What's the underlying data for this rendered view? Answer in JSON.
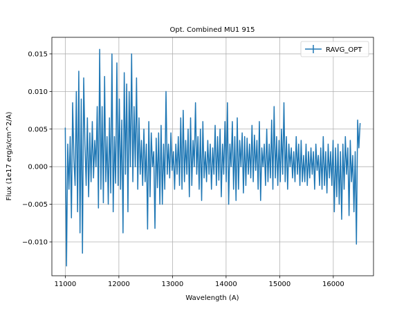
{
  "chart_data": {
    "type": "line",
    "title": "Opt. Combined MU1 915",
    "xlabel": "Wavelength (A)",
    "ylabel": "Flux (1e17 erg/s/cm^2/A)",
    "xlim": [
      10750,
      16750
    ],
    "ylim": [
      -0.0145,
      0.0172
    ],
    "x_ticks": [
      11000,
      12000,
      13000,
      14000,
      15000,
      16000
    ],
    "y_ticks": [
      -0.01,
      -0.005,
      0.0,
      0.005,
      0.01,
      0.015
    ],
    "x_tick_labels": [
      "11000",
      "12000",
      "13000",
      "14000",
      "15000",
      "16000"
    ],
    "y_tick_labels": [
      "−0.010",
      "−0.005",
      "0.000",
      "0.005",
      "0.010",
      "0.015"
    ],
    "grid": true,
    "legend_position": "top-right",
    "series": [
      {
        "name": "RAVG_OPT",
        "color": "#1f77b4",
        "x_start": 11000,
        "x_end": 16500,
        "y": [
          0.0052,
          -0.0132,
          0.003,
          -0.003,
          0.004,
          -0.0068,
          0.0085,
          0.001,
          -0.0025,
          0.01,
          -0.006,
          0.0127,
          -0.0088,
          0.009,
          -0.0115,
          0.0118,
          0.003,
          -0.0025,
          0.0065,
          -0.004,
          0.0045,
          -0.002,
          0.006,
          -0.0015,
          0.0035,
          0.0,
          0.008,
          -0.0055,
          0.0156,
          -0.003,
          0.008,
          -0.0048,
          0.012,
          -0.002,
          0.004,
          -0.005,
          0.0065,
          -0.0035,
          0.015,
          -0.006,
          0.004,
          -0.0022,
          0.0138,
          -0.0025,
          0.009,
          -0.003,
          0.0062,
          -0.0088,
          0.0125,
          -0.001,
          0.011,
          -0.006,
          0.01,
          0.0,
          0.015,
          -0.002,
          0.008,
          0.0,
          0.0118,
          -0.003,
          0.0065,
          -0.001,
          0.0035,
          -0.0025,
          0.005,
          -0.002,
          0.003,
          -0.0083,
          0.006,
          -0.004,
          0.0045,
          0.0,
          0.002,
          -0.0082,
          0.0038,
          -0.0028,
          0.0045,
          -0.005,
          0.0055,
          -0.005,
          0.003,
          -0.003,
          0.01,
          -0.001,
          0.003,
          -0.0015,
          0.0045,
          -0.0005,
          0.002,
          -0.003,
          0.003,
          -0.001,
          0.004,
          -0.0025,
          0.0065,
          -0.003,
          0.0075,
          -0.002,
          0.0035,
          -0.001,
          0.005,
          -0.004,
          0.0065,
          -0.0025,
          0.0035,
          0.0,
          0.0085,
          -0.001,
          0.004,
          -0.003,
          0.005,
          -0.0045,
          0.006,
          -0.0015,
          0.002,
          -0.002,
          0.0035,
          -0.001,
          0.003,
          -0.003,
          0.0025,
          -0.001,
          0.0055,
          -0.0025,
          0.004,
          -0.0018,
          0.005,
          -0.004,
          0.003,
          -0.001,
          0.006,
          -0.002,
          0.0085,
          -0.005,
          0.003,
          0.0,
          0.006,
          -0.003,
          0.004,
          -0.0045,
          0.0065,
          -0.003,
          0.0035,
          0.0,
          0.0045,
          -0.0035,
          0.004,
          -0.0025,
          0.0038,
          -0.001,
          0.003,
          -0.0015,
          0.0055,
          -0.002,
          0.0042,
          -0.0005,
          0.0035,
          -0.003,
          0.006,
          -0.0045,
          0.0025,
          0.0,
          0.003,
          -0.0025,
          0.005,
          -0.002,
          0.003,
          -0.0015,
          0.0062,
          -0.003,
          0.008,
          -0.0015,
          0.004,
          -0.0025,
          0.0035,
          -0.002,
          0.005,
          -0.001,
          0.0085,
          -0.002,
          0.004,
          -0.003,
          0.003,
          0.0,
          0.0025,
          -0.0015,
          0.002,
          -0.002,
          0.004,
          -0.001,
          0.003,
          -0.0025,
          0.0035,
          -0.002,
          0.0015,
          -0.002,
          0.003,
          -0.0025,
          0.002,
          -0.0015,
          0.0025,
          -0.001,
          0.002,
          -0.003,
          0.003,
          -0.0005,
          0.0015,
          -0.0025,
          0.0025,
          -0.003,
          0.004,
          -0.0025,
          0.002,
          -0.0035,
          0.003,
          -0.0015,
          0.002,
          -0.0025,
          0.0035,
          -0.006,
          0.0025,
          -0.004,
          0.003,
          -0.005,
          0.002,
          -0.007,
          0.003,
          -0.003,
          0.004,
          -0.001,
          0.0025,
          -0.0065,
          0.0035,
          -0.002,
          0.0015,
          -0.006,
          0.002,
          -0.0103,
          0.0062,
          0.0025,
          0.0058
        ]
      }
    ]
  }
}
